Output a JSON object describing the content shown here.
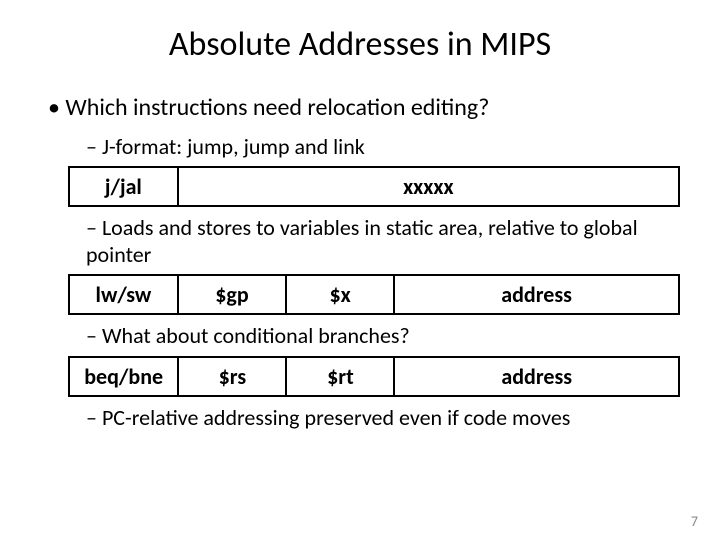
{
  "title": "Absolute Addresses in MIPS",
  "bullet_main": "Which instructions need relocation editing?",
  "sub1": "J-format: jump, jump and link",
  "sub2": "Loads and stores to variables in static area, relative to global pointer",
  "sub3": "What about conditional branches?",
  "sub4_pre": "PC-relative addressing ",
  "sub4_hl": "preserved",
  "sub4_post": " even if code moves",
  "page_number": "7",
  "table1": {
    "cells": [
      "j/jal",
      "xxxxx"
    ],
    "widths": [
      110,
      510
    ]
  },
  "table2": {
    "cells": [
      "lw/sw",
      "$gp",
      "$x",
      "address"
    ],
    "widths": [
      110,
      110,
      110,
      290
    ]
  },
  "table3": {
    "cells": [
      "beq/bne",
      "$rs",
      "$rt",
      "address"
    ],
    "widths": [
      110,
      110,
      110,
      290
    ]
  },
  "colors": {
    "text": "#000000",
    "page_num": "#888888",
    "border": "#000000",
    "bg": "#ffffff"
  },
  "fonts": {
    "title_size": 34,
    "body_size": 24,
    "sub_size": 22,
    "table_size": 22,
    "page_num_size": 14
  }
}
